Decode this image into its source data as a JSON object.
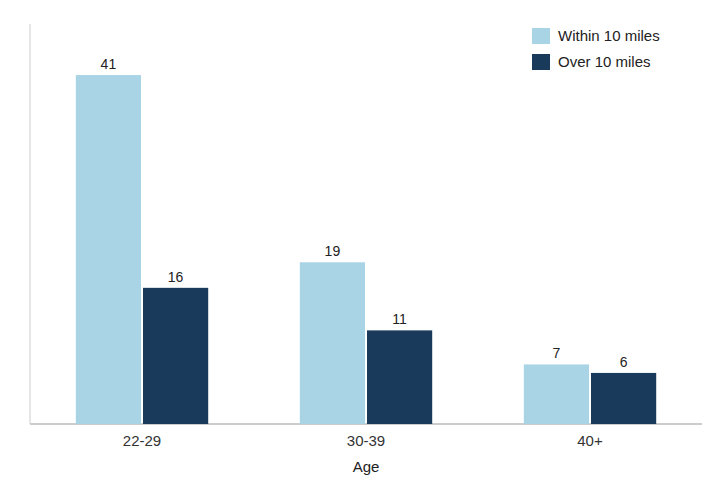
{
  "chart_data": {
    "type": "bar",
    "categories": [
      "22-29",
      "30-39",
      "40+"
    ],
    "series": [
      {
        "name": "Within 10 miles",
        "color": "#a8d4e6",
        "values": [
          41,
          19,
          7
        ]
      },
      {
        "name": "Over 10 miles",
        "color": "#1a3a5c",
        "values": [
          16,
          11,
          6
        ]
      }
    ],
    "xlabel": "Age",
    "ylim": [
      0,
      47
    ],
    "data_labels": true,
    "tick_labels": "x",
    "legend": "upper right"
  }
}
